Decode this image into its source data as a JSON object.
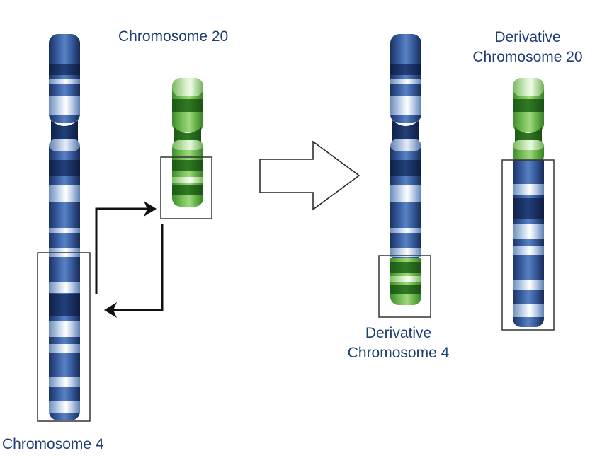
{
  "labels": {
    "chr20": "Chromosome 20",
    "chr4": "Chromosome 4",
    "der20_line1": "Derivative",
    "der20_line2": "Chromosome 20",
    "der4_line1": "Derivative",
    "der4_line2": "Chromosome 4"
  },
  "colors": {
    "chromosome4": "#2f5496",
    "chromosome20": "#58a63f",
    "text": "#1f3e75",
    "box_outline": "#333333",
    "arrow": "#111111"
  }
}
